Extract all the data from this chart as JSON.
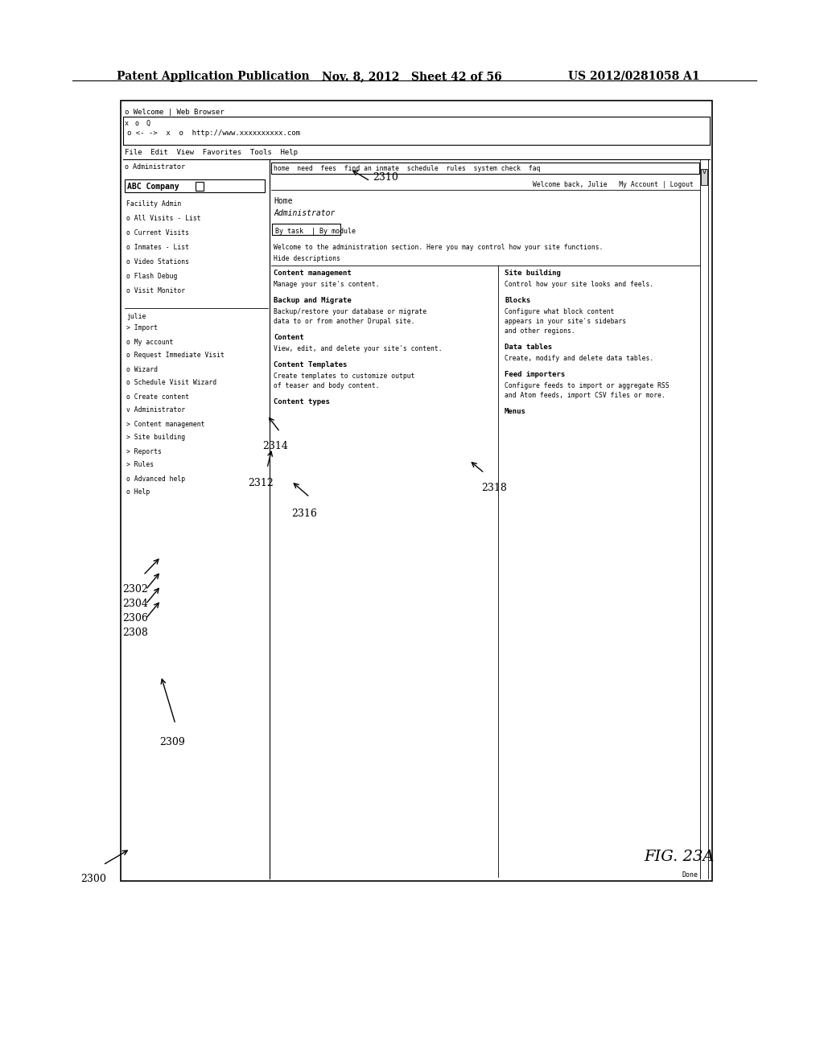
{
  "title_left": "Patent Application Publication",
  "title_mid": "Nov. 8, 2012   Sheet 42 of 56",
  "title_right": "US 2012/0281058 A1",
  "fig_label": "FIG. 23A",
  "bg_color": "#ffffff",
  "label_2300": "2300",
  "label_2302": "2302",
  "label_2304": "2304",
  "label_2306": "2306",
  "label_2308": "2308",
  "label_2309": "2309",
  "label_2310": "2310",
  "label_2312": "2312",
  "label_2314": "2314",
  "label_2316": "2316",
  "label_2318": "2318"
}
